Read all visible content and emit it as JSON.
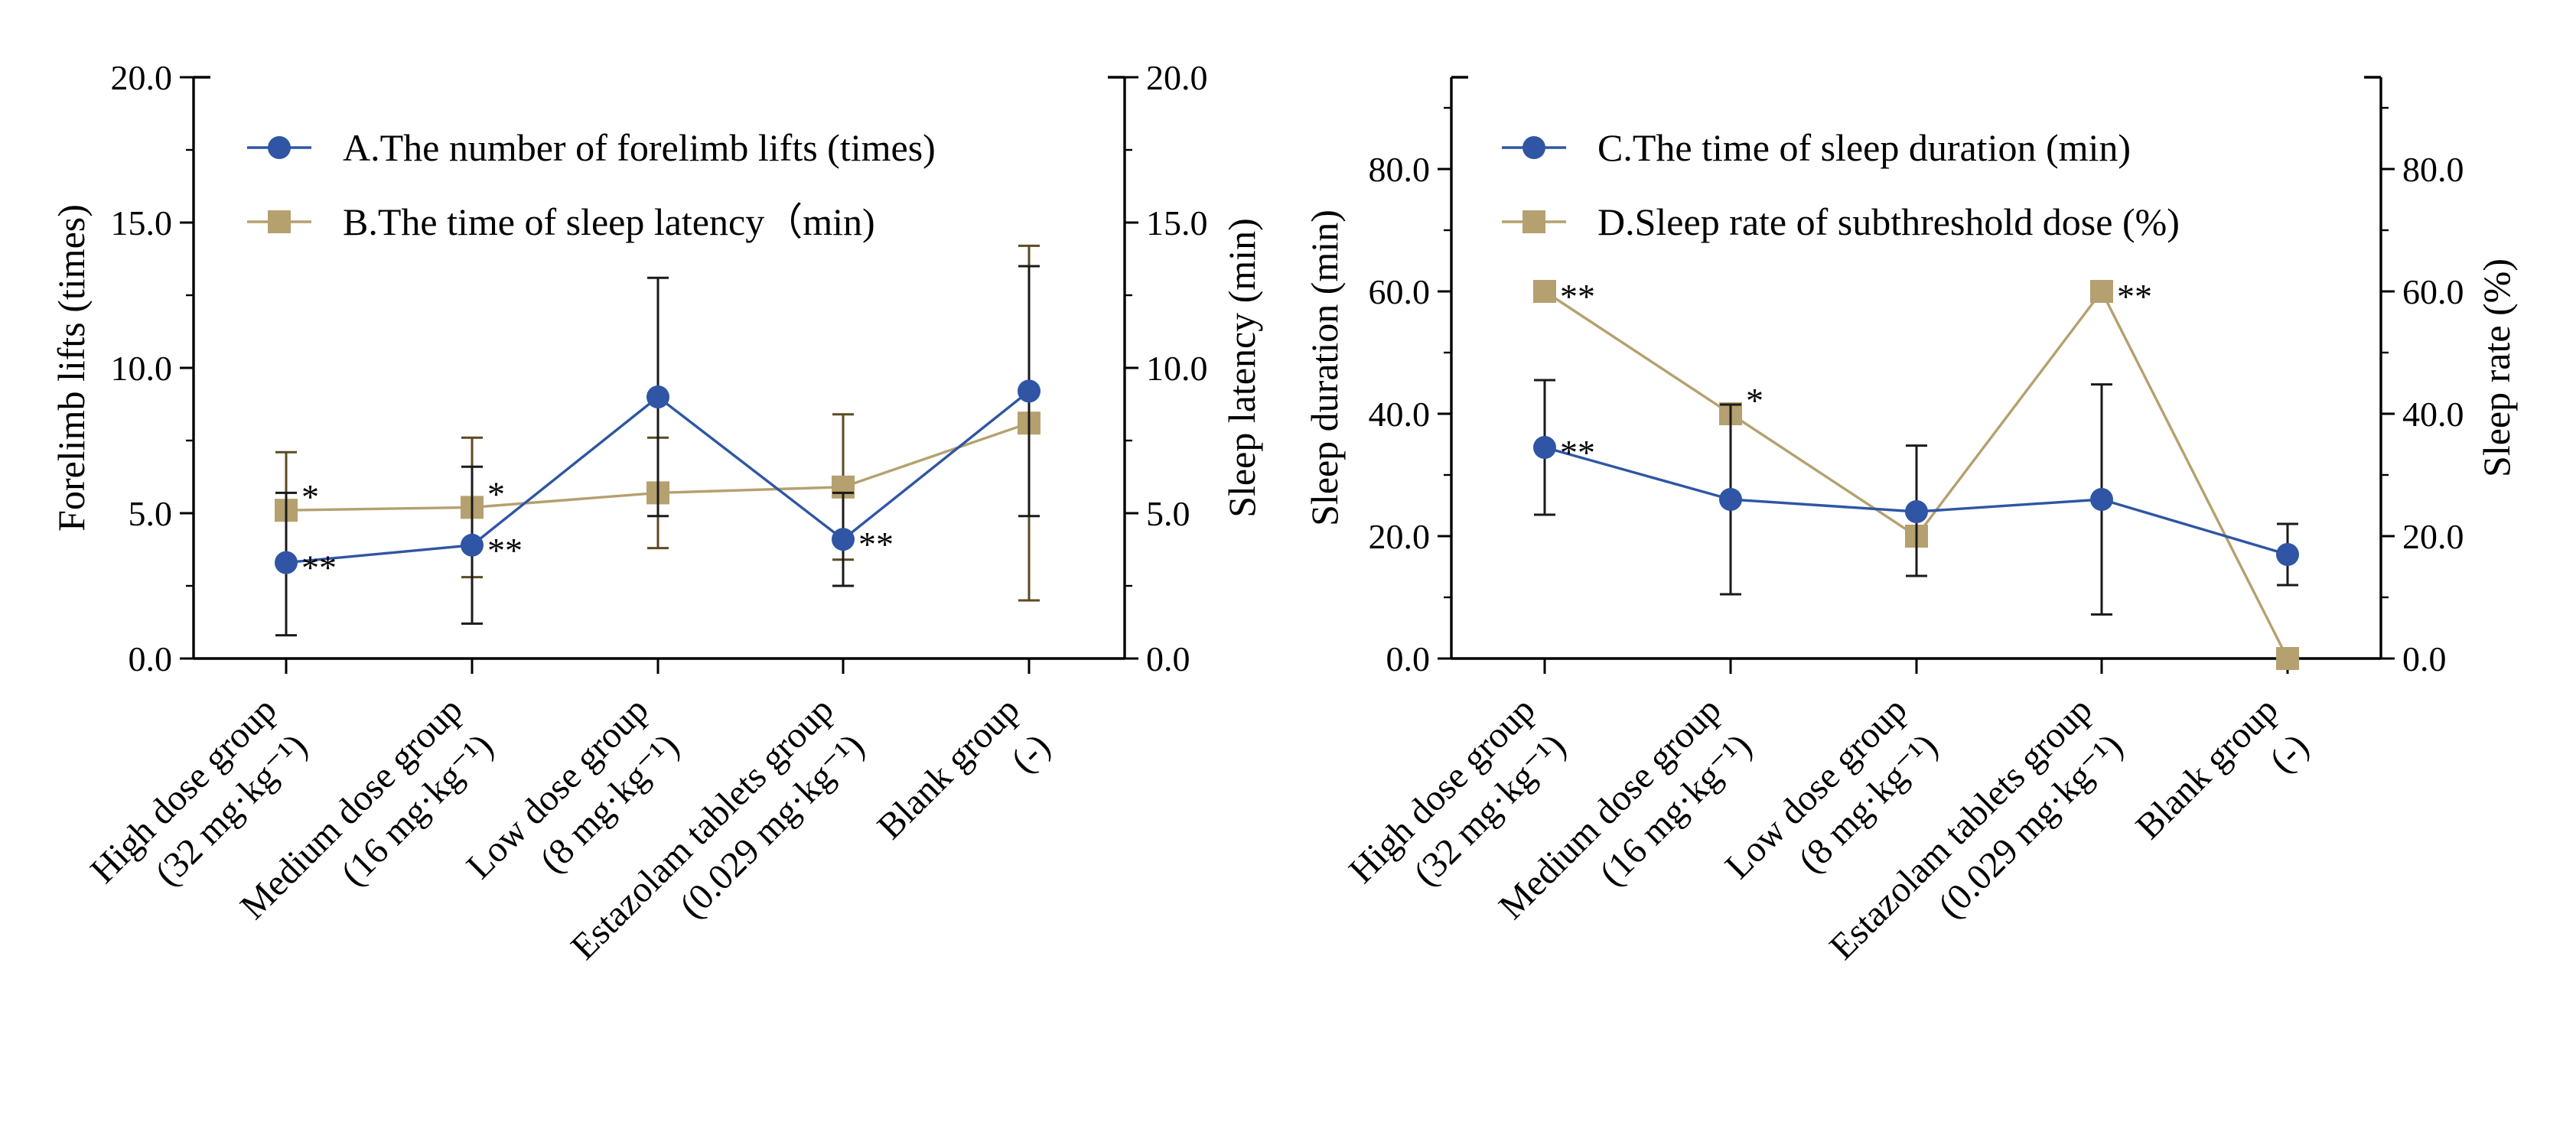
{
  "colors": {
    "blue": "#2f55a4",
    "tan": "#b5a06f",
    "axis": "#000000"
  },
  "chart_data": [
    {
      "type": "line",
      "panel": "left",
      "categories": [
        [
          "High dose group",
          "(32 mg·kg⁻¹)"
        ],
        [
          "Medium dose group",
          "(16 mg·kg⁻¹)"
        ],
        [
          "Low dose group",
          "(8 mg·kg⁻¹)"
        ],
        [
          "Estazolam tablets group",
          "(0.029 mg·kg⁻¹)"
        ],
        [
          "Blank group",
          "(-)"
        ]
      ],
      "ylabel": "Forelimb lifts (times)",
      "y2label": "Sleep latency (min)",
      "ylim": [
        0,
        20
      ],
      "y2lim": [
        0,
        20
      ],
      "yticks": [
        "0.0",
        "5.0",
        "10.0",
        "15.0",
        "20.0"
      ],
      "y2ticks": [
        "0.0",
        "5.0",
        "10.0",
        "15.0",
        "20.0"
      ],
      "series": [
        {
          "name": "A.The number of forelimb lifts (times)",
          "axis": "left",
          "marker": "circle",
          "color": "#2f55a4",
          "values": [
            3.3,
            3.9,
            9.0,
            4.1,
            9.2
          ],
          "err_low": [
            0.8,
            1.2,
            4.9,
            2.5,
            4.9
          ],
          "err_high": [
            5.7,
            6.6,
            13.1,
            5.7,
            13.5
          ],
          "sig": [
            "**",
            "**",
            "",
            "**",
            ""
          ]
        },
        {
          "name": "B.The time of sleep latency（min)",
          "axis": "right",
          "marker": "square",
          "color": "#b5a06f",
          "values": [
            5.1,
            5.2,
            5.7,
            5.9,
            8.1
          ],
          "err_low": [
            3.4,
            2.8,
            3.8,
            3.4,
            2.0
          ],
          "err_high": [
            7.1,
            7.6,
            7.6,
            8.4,
            14.2
          ],
          "sig": [
            "*",
            "*",
            "",
            "",
            ""
          ]
        }
      ]
    },
    {
      "type": "line",
      "panel": "right",
      "categories": [
        [
          "High dose group",
          "(32 mg·kg⁻¹)"
        ],
        [
          "Medium dose group",
          "(16 mg·kg⁻¹)"
        ],
        [
          "Low dose group",
          "(8 mg·kg⁻¹)"
        ],
        [
          "Estazolam tablets group",
          "(0.029 mg·kg⁻¹)"
        ],
        [
          "Blank group",
          "(-)"
        ]
      ],
      "ylabel": "Sleep duration (min)",
      "y2label": "Sleep rate (%)",
      "ylim": [
        0,
        95
      ],
      "y2lim": [
        0,
        95
      ],
      "yticks": [
        "0.0",
        "20.0",
        "40.0",
        "60.0",
        "80.0"
      ],
      "y2ticks": [
        "0.0",
        "20.0",
        "40.0",
        "60.0",
        "80.0"
      ],
      "series": [
        {
          "name": "C.The time of sleep duration (min)",
          "axis": "left",
          "marker": "circle",
          "color": "#2f55a4",
          "values": [
            34.5,
            26.0,
            24.0,
            26.0,
            17.0
          ],
          "err_low": [
            23.5,
            10.5,
            13.5,
            7.2,
            12.0
          ],
          "err_high": [
            45.5,
            41.5,
            34.8,
            44.8,
            22.0
          ],
          "sig": [
            "**",
            "",
            "",
            "",
            ""
          ]
        },
        {
          "name": "D.Sleep rate of subthreshold dose (%)",
          "axis": "right",
          "marker": "square",
          "color": "#b5a06f",
          "values": [
            60,
            40,
            20,
            60,
            0
          ],
          "err_low": [
            null,
            null,
            null,
            null,
            null
          ],
          "err_high": [
            null,
            null,
            null,
            null,
            null
          ],
          "sig": [
            "**",
            "*",
            "",
            "**",
            ""
          ]
        }
      ]
    }
  ]
}
